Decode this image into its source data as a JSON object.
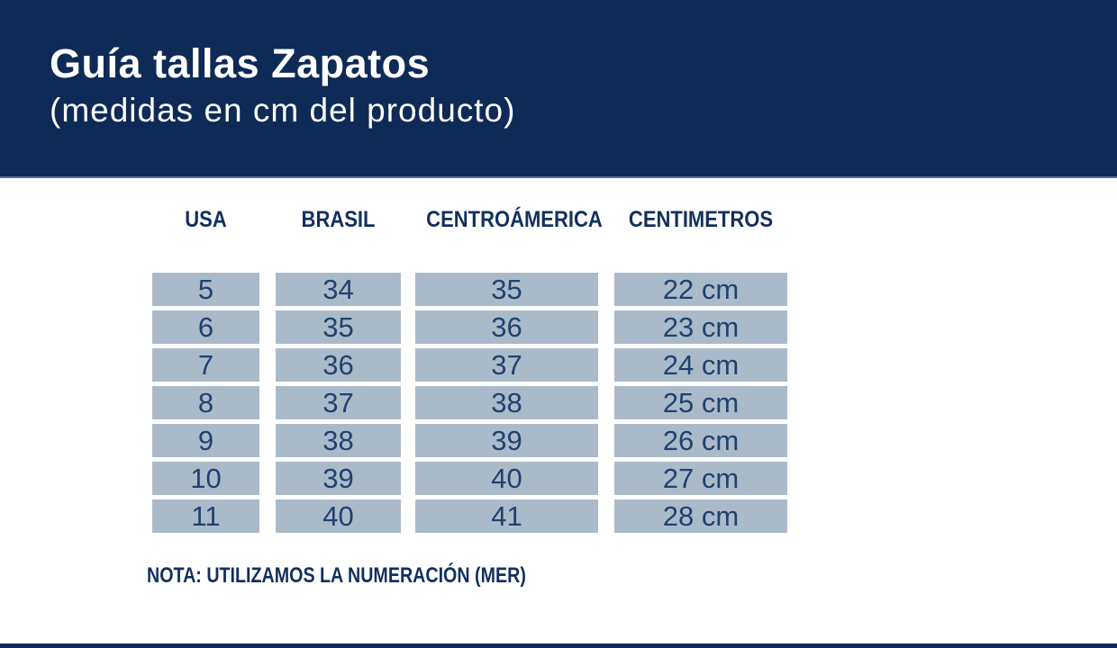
{
  "header": {
    "title": "Guía tallas Zapatos",
    "subtitle": "(medidas en cm del producto)"
  },
  "table": {
    "columns": [
      {
        "label": "USA",
        "values": [
          "5",
          "6",
          "7",
          "8",
          "9",
          "10",
          "11"
        ]
      },
      {
        "label": "BRASIL",
        "values": [
          "34",
          "35",
          "36",
          "37",
          "38",
          "39",
          "40"
        ]
      },
      {
        "label": "CENTROÁMERICA",
        "values": [
          "35",
          "36",
          "37",
          "38",
          "39",
          "40",
          "41"
        ]
      },
      {
        "label": "CENTIMETROS",
        "values": [
          "22 cm",
          "23 cm",
          "24 cm",
          "25 cm",
          "26 cm",
          "27 cm",
          "28 cm"
        ]
      }
    ]
  },
  "note": {
    "text": "NOTA: UTILIZAMOS LA NUMERACIÓN (MER)"
  },
  "colors": {
    "band_navy": "#0e2a56",
    "band_border": "#5f718e",
    "cell_background": "#abbac9",
    "cell_text": "#1e4270",
    "heading_text": "#12305e",
    "page_background": "#ffffff"
  }
}
